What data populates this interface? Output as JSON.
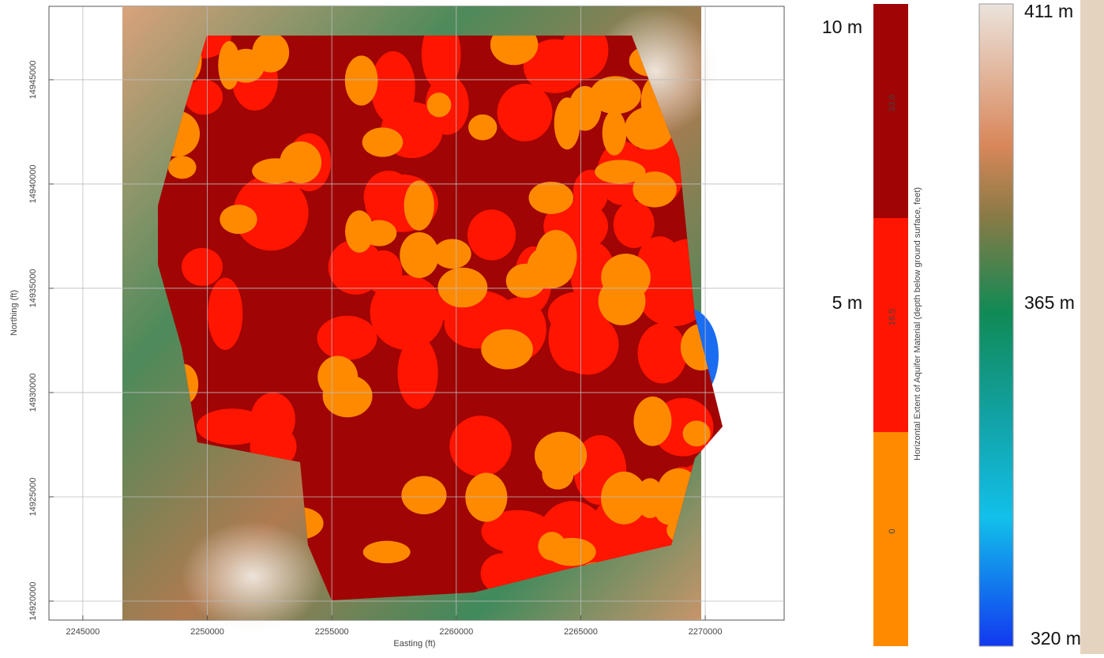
{
  "chart_data": {
    "type": "map",
    "xlabel": "Easting (ft)",
    "ylabel": "Northing (ft)",
    "xlim": [
      2243640,
      2273170
    ],
    "ylim": [
      14919090,
      14948520
    ],
    "xticks": [
      2245000,
      2250000,
      2255000,
      2260000,
      2265000,
      2270000
    ],
    "yticks": [
      14920000,
      14925000,
      14930000,
      14935000,
      14940000,
      14945000
    ],
    "grid": true
  },
  "depth_legend": {
    "title": "Horizontal Extent of Aquifer Material (depth below ground surface, feet)",
    "classes": [
      {
        "label": "0",
        "color": "#ff8a00"
      },
      {
        "label": "16.5",
        "color": "#ff1500"
      },
      {
        "label": "33.6",
        "color": "#a00404"
      }
    ],
    "annotations": [
      "5 m",
      "10 m"
    ]
  },
  "elevation_legend": {
    "labels": [
      "411 m",
      "365 m",
      "320 m"
    ]
  }
}
